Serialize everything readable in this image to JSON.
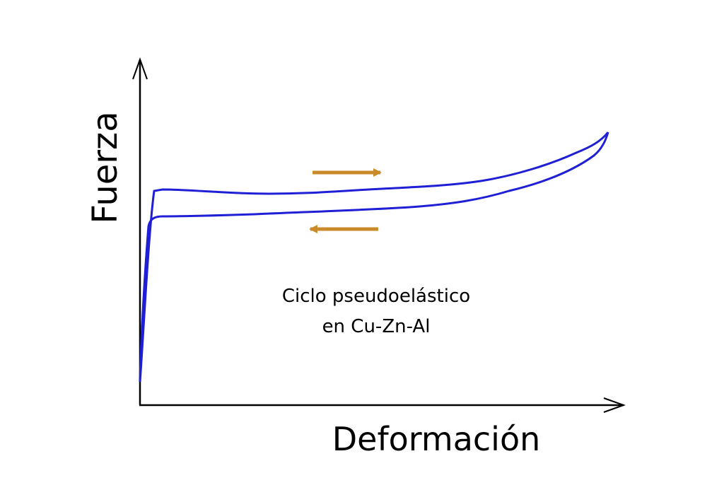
{
  "axes": {
    "x_label": "Deformación",
    "y_label": "Fuerza"
  },
  "annotation": {
    "lines": [
      "Ciclo pseudoelástico",
      "en Cu-Zn-Al"
    ]
  }
}
